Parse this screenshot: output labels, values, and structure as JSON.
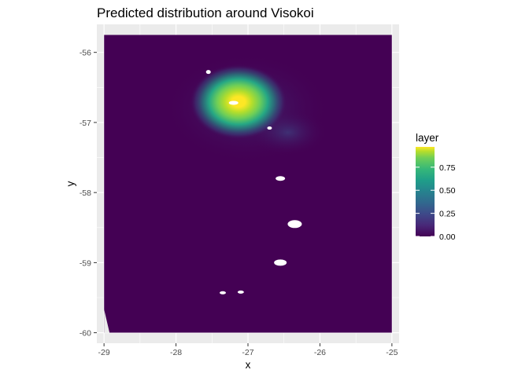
{
  "chart_data": {
    "type": "heatmap",
    "title": "Predicted distribution around Visokoi",
    "xlabel": "x",
    "ylabel": "y",
    "xlim": [
      -29.1,
      -24.9
    ],
    "ylim": [
      -60.15,
      -55.6
    ],
    "x_ticks": [
      -29,
      -28,
      -27,
      -26,
      -25
    ],
    "y_ticks": [
      -60,
      -59,
      -58,
      -57,
      -56
    ],
    "x_tick_labels": [
      "-29",
      "-28",
      "-27",
      "-26",
      "-25"
    ],
    "y_tick_labels": [
      "-60",
      "-59",
      "-58",
      "-57",
      "-56"
    ],
    "grid": true,
    "raster_extent": {
      "x": [
        -29.0,
        -25.0
      ],
      "y": [
        -60.0,
        -55.75
      ]
    },
    "hotspot": {
      "x": -27.1,
      "y": -56.75,
      "value": 0.97
    },
    "background_value": 0.0,
    "legend": {
      "title": "layer",
      "position": "right",
      "colormap": "viridis",
      "range": [
        0,
        0.97
      ],
      "breaks": [
        0.0,
        0.25,
        0.5,
        0.75
      ],
      "labels": [
        "0.00",
        "0.25",
        "0.50",
        "0.75"
      ]
    },
    "no_data_islands": [
      {
        "x": -27.2,
        "y": -56.72
      },
      {
        "x": -27.55,
        "y": -56.28
      },
      {
        "x": -26.7,
        "y": -57.08
      },
      {
        "x": -26.55,
        "y": -57.8
      },
      {
        "x": -26.35,
        "y": -58.45
      },
      {
        "x": -26.55,
        "y": -59.0
      },
      {
        "x": -27.35,
        "y": -59.43
      },
      {
        "x": -27.1,
        "y": -59.42
      }
    ],
    "colors": {
      "panel_background": "#ebebeb",
      "grid_major": "#ffffff",
      "low": "#440154",
      "high": "#fde725"
    }
  }
}
